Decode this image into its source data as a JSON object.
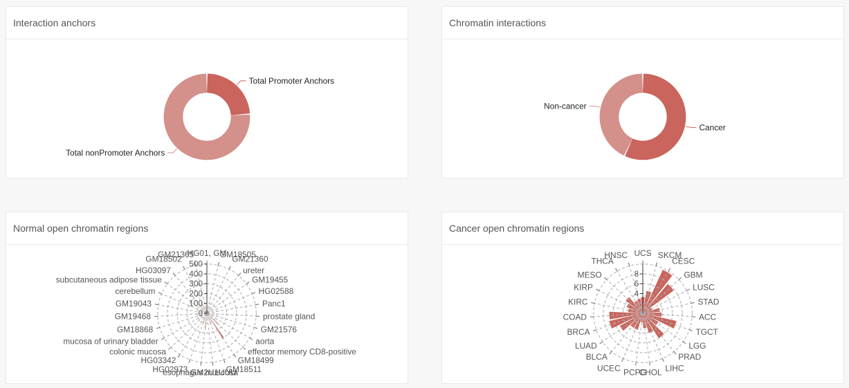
{
  "colors": {
    "dark": "#c9655d",
    "light": "#d4908a",
    "grid": "#aaaaaa",
    "label": "#555555"
  },
  "cards": {
    "interaction_anchors": {
      "title": "Interaction anchors"
    },
    "chromatin_interactions": {
      "title": "Chromatin interactions"
    },
    "normal_open": {
      "title": "Normal open chromatin regions"
    },
    "cancer_open": {
      "title": "Cancer open chromatin regions"
    }
  },
  "chart_data": [
    {
      "type": "pie",
      "variant": "donut",
      "slices": [
        {
          "label": "Total Promoter Anchors",
          "value": 24,
          "color": "#c9655d"
        },
        {
          "label": "Total nonPromoter Anchors",
          "value": 76,
          "color": "#d4908a"
        }
      ]
    },
    {
      "type": "pie",
      "variant": "donut",
      "slices": [
        {
          "label": "Cancer",
          "value": 57,
          "color": "#c9655d"
        },
        {
          "label": "Non-cancer",
          "value": 43,
          "color": "#d4908a"
        }
      ]
    },
    {
      "type": "bar",
      "variant": "polar",
      "categories": [
        "HG01, GM",
        "GM18505",
        "GM21360",
        "ureter",
        "GM19455",
        "HG02588",
        "Panc1",
        "prostate gland",
        "GM21576",
        "aorta",
        "effector memory CD8-positive",
        "GM18499",
        "GM18511",
        "GM2U1UUU",
        "esophagus muscosa",
        "HG02973",
        "HG03342",
        "colonic mucosa",
        "mucosa of urinary bladder",
        "GM18868",
        "GM19468",
        "GM19043",
        "cerebellum",
        "subcutaneous adipose tissue",
        "HG03097",
        "GM18502",
        "GM21365"
      ],
      "values": [
        80,
        30,
        60,
        40,
        50,
        40,
        30,
        35,
        80,
        70,
        160,
        300,
        120,
        50,
        150,
        110,
        60,
        40,
        30,
        40,
        30,
        50,
        60,
        80,
        100,
        130,
        60
      ],
      "rlim": [
        0,
        500
      ],
      "rticks": [
        "0",
        "100",
        "200",
        "300",
        "400",
        "500"
      ]
    },
    {
      "type": "bar",
      "variant": "polar",
      "categories": [
        "UCS",
        "SKCM",
        "CESC",
        "GBM",
        "LUSC",
        "STAD",
        "ACC",
        "TGCT",
        "LGG",
        "PRAD",
        "LIHC",
        "CHOL",
        "PCPG",
        "UCEC",
        "BLCA",
        "LUAD",
        "BRCA",
        "COAD",
        "KIRC",
        "KIRP",
        "MESO",
        "THCA",
        "HNSC"
      ],
      "values": [
        3.3,
        4.6,
        9.7,
        7.8,
        2.0,
        3.5,
        3.8,
        7.0,
        3.6,
        6.0,
        4.2,
        3.0,
        1.8,
        3.5,
        3.5,
        5.3,
        7.0,
        6.8,
        3.0,
        3.5,
        4.3,
        2.8,
        3.0
      ],
      "rlim": [
        0,
        10
      ],
      "rticks": [
        "4",
        "6",
        "8"
      ]
    }
  ]
}
